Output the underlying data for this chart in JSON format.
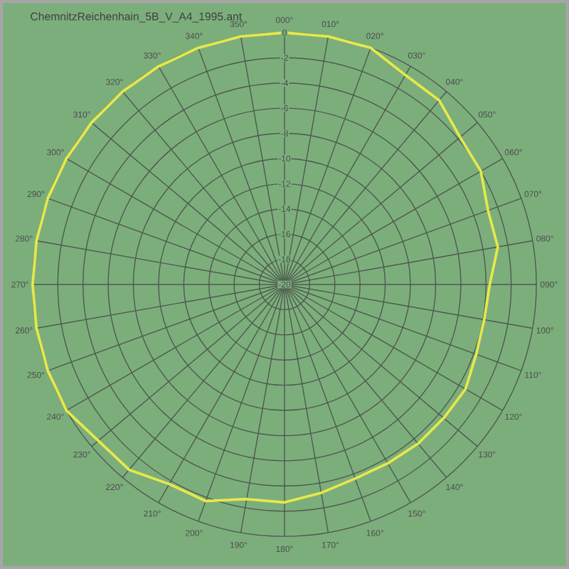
{
  "chart_data": {
    "type": "radar",
    "title": "ChemnitzReichenhain_5B_V_A4_1995.ant",
    "categories": [
      "000°",
      "010°",
      "020°",
      "030°",
      "040°",
      "050°",
      "060°",
      "070°",
      "080°",
      "090°",
      "100°",
      "110°",
      "120°",
      "130°",
      "140°",
      "150°",
      "160°",
      "170°",
      "180°",
      "190°",
      "200°",
      "210°",
      "220°",
      "230°",
      "240°",
      "250°",
      "260°",
      "270°",
      "280°",
      "290°",
      "300°",
      "310°",
      "320°",
      "330°",
      "340°",
      "350°"
    ],
    "series": [
      {
        "color": "#e8e84a",
        "values": [
          0,
          0,
          0,
          -0.8,
          -0.9,
          -1.8,
          -2,
          -2.8,
          -2.8,
          -3.7,
          -3.9,
          -3.8,
          -3.4,
          -3.5,
          -3.5,
          -3.6,
          -3.6,
          -3.2,
          -2.7,
          -2.7,
          -1.7,
          -1.7,
          -0.8,
          -0.7,
          0,
          0,
          0,
          0,
          0,
          0,
          0,
          0,
          0,
          0,
          0,
          0
        ]
      }
    ],
    "ylim": [
      -20,
      0
    ],
    "yticks": [
      -20,
      -18,
      -16,
      -14,
      -12,
      -10,
      -8,
      -6,
      -4,
      -2,
      0
    ],
    "grid": true
  }
}
